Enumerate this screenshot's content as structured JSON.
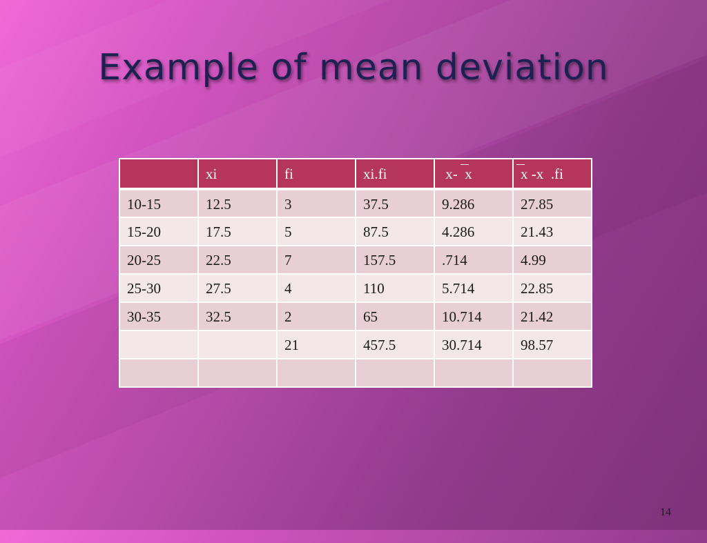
{
  "slide": {
    "title": "Example of mean deviation",
    "number": "14"
  },
  "table": {
    "headers": {
      "col0": "",
      "col1": "xi",
      "col2": "fi",
      "col3": "xi.fi",
      "col4_a": "x-",
      "col4_b": "x",
      "col5_a": "x -x",
      "col5_b": ".fi"
    },
    "rows": [
      [
        "10-15",
        "12.5",
        "3",
        "37.5",
        "9.286",
        "27.85"
      ],
      [
        "15-20",
        "17.5",
        "5",
        "87.5",
        "4.286",
        "21.43"
      ],
      [
        "20-25",
        "22.5",
        "7",
        "157.5",
        ".714",
        "4.99"
      ],
      [
        "25-30",
        "27.5",
        "4",
        "110",
        "5.714",
        "22.85"
      ],
      [
        "30-35",
        "32.5",
        "2",
        "65",
        "10.714",
        "21.42"
      ],
      [
        "",
        "",
        "21",
        "457.5",
        "30.714",
        "98.57"
      ],
      [
        "",
        "",
        "",
        "",
        "",
        ""
      ]
    ]
  },
  "colors": {
    "header_bg": "#b5355c",
    "row_odd": "#e8cfd5",
    "row_even": "#f3e7ea",
    "title": "#1c2152"
  }
}
